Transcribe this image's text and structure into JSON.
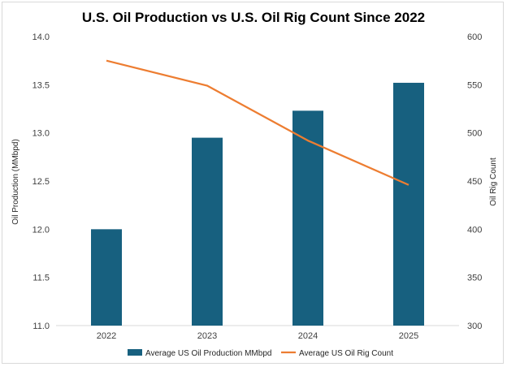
{
  "chart_data": {
    "type": "bar",
    "title": "U.S. Oil Production vs U.S. Oil Rig Count Since 2022",
    "categories": [
      "2022",
      "2023",
      "2024",
      "2025"
    ],
    "series": [
      {
        "name": "Average US Oil Production MMbpd",
        "type": "bar",
        "axis": "left",
        "color": "#17607f",
        "values": [
          12.0,
          12.95,
          13.23,
          13.52
        ]
      },
      {
        "name": "Average US Oil Rig Count",
        "type": "line",
        "axis": "right",
        "color": "#ed7d31",
        "values": [
          575,
          549,
          492,
          446
        ]
      }
    ],
    "ylabel": "Oil Production (MMbpd)",
    "ylim": [
      11.0,
      14.0
    ],
    "yticks": [
      "11.0",
      "11.5",
      "12.0",
      "12.5",
      "13.0",
      "13.5",
      "14.0"
    ],
    "y2label": "Oil Rig Count",
    "y2lim": [
      300,
      600
    ],
    "y2ticks": [
      "300",
      "350",
      "400",
      "450",
      "500",
      "550",
      "600"
    ],
    "grid": false,
    "legend": "bottom"
  }
}
